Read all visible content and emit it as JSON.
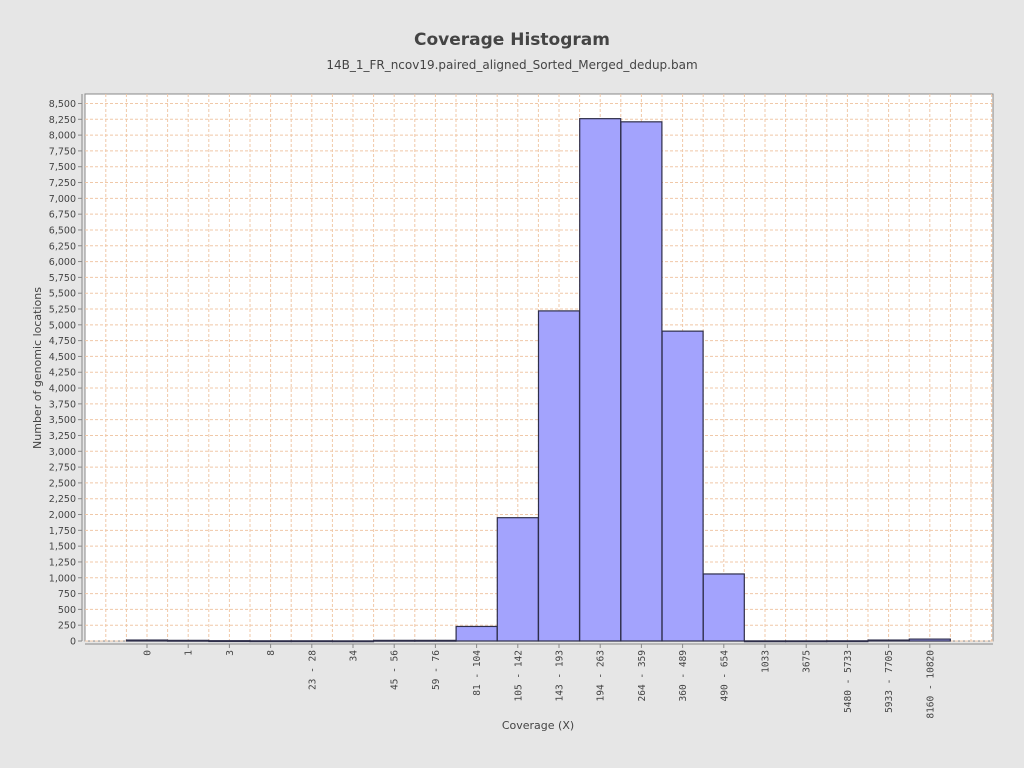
{
  "chart_data": {
    "type": "bar",
    "title": "Coverage Histogram",
    "subtitle": "14B_1_FR_ncov19.paired_aligned_Sorted_Merged_dedup.bam",
    "xlabel": "Coverage (X)",
    "ylabel": "Number of genomic locations",
    "ylim": [
      0,
      8650
    ],
    "ytick_step": 250,
    "grid": true,
    "categories": [
      "0",
      "1",
      "3",
      "8",
      "23 - 28",
      "34",
      "45 - 56",
      "59 - 76",
      "81 - 104",
      "105 - 142",
      "143 - 193",
      "194 - 263",
      "264 - 359",
      "360 - 489",
      "490 - 654",
      "1033",
      "3675",
      "5480 - 5733",
      "5933 - 7705",
      "8160 - 10820"
    ],
    "series": [
      {
        "values": [
          15,
          10,
          5,
          3,
          3,
          2,
          10,
          10,
          230,
          1950,
          5220,
          8260,
          8210,
          4900,
          1060,
          2,
          2,
          3,
          15,
          30
        ]
      }
    ],
    "colors": {
      "bar_fill": "#a3a3fd",
      "bar_stroke": "#2e2e4a",
      "plot_background": "#ffffff",
      "grid": "#f0c8a8",
      "page_background": "#e6e6e6",
      "text": "#444444"
    }
  }
}
